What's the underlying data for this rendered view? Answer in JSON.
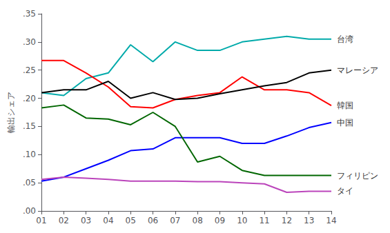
{
  "chart_data": {
    "type": "line",
    "y_label": "輸出シェア",
    "categories": [
      "01",
      "02",
      "03",
      "04",
      "05",
      "06",
      "07",
      "08",
      "09",
      "10",
      "11",
      "12",
      "13",
      "14"
    ],
    "series": [
      {
        "name": "台湾",
        "color": "#00AAAA",
        "values": [
          0.21,
          0.205,
          0.235,
          0.245,
          0.295,
          0.265,
          0.3,
          0.285,
          0.285,
          0.3,
          0.305,
          0.31,
          0.305,
          0.305
        ]
      },
      {
        "name": "韓国",
        "color": "#FF0000",
        "values": [
          0.267,
          0.267,
          0.245,
          0.22,
          0.185,
          0.183,
          0.198,
          0.205,
          0.21,
          0.238,
          0.215,
          0.215,
          0.21,
          0.187
        ]
      },
      {
        "name": "マレーシア",
        "color": "#000000",
        "values": [
          0.21,
          0.215,
          0.215,
          0.23,
          0.2,
          0.21,
          0.198,
          0.2,
          0.208,
          0.215,
          0.222,
          0.228,
          0.245,
          0.25
        ]
      },
      {
        "name": "中国",
        "color": "#0000FF",
        "values": [
          0.053,
          0.06,
          0.075,
          0.09,
          0.107,
          0.11,
          0.13,
          0.13,
          0.13,
          0.12,
          0.12,
          0.133,
          0.148,
          0.157
        ]
      },
      {
        "name": "フィリピン",
        "color": "#006600",
        "values": [
          0.183,
          0.188,
          0.165,
          0.163,
          0.153,
          0.175,
          0.15,
          0.087,
          0.097,
          0.072,
          0.063,
          0.063,
          0.063,
          0.063
        ]
      },
      {
        "name": "タイ",
        "color": "#BB44BB",
        "values": [
          0.056,
          0.06,
          0.058,
          0.056,
          0.053,
          0.053,
          0.053,
          0.052,
          0.052,
          0.05,
          0.048,
          0.033,
          0.035,
          0.035
        ]
      }
    ],
    "ylim": [
      0.0,
      0.35
    ],
    "yticks": [
      {
        "value": 0.0,
        "label": ".00"
      },
      {
        "value": 0.05,
        "label": ".05"
      },
      {
        "value": 0.1,
        "label": ".10"
      },
      {
        "value": 0.15,
        "label": ".15"
      },
      {
        "value": 0.2,
        "label": ".20"
      },
      {
        "value": 0.25,
        "label": ".25"
      },
      {
        "value": 0.3,
        "label": ".30"
      },
      {
        "value": 0.35,
        "label": ".35"
      }
    ],
    "grid": false
  }
}
